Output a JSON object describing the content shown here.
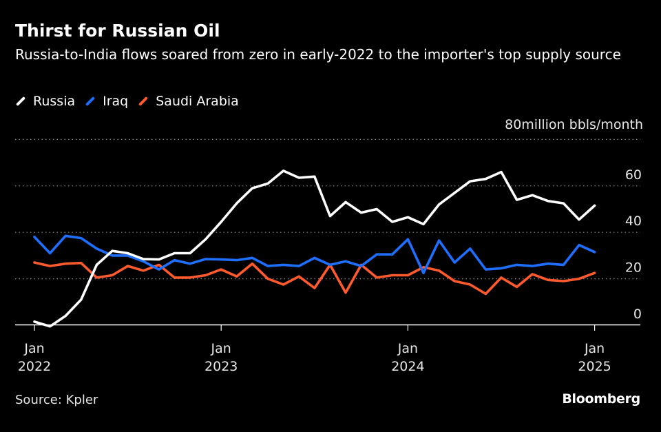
{
  "header": {
    "title": "Thirst for Russian Oil",
    "subtitle": "Russia-to-India flows soared from zero in early-2022 to the importer's top supply source"
  },
  "footer": {
    "source": "Source: Kpler",
    "brand": "Bloomberg"
  },
  "chart_data": {
    "type": "line",
    "title": "Thirst for Russian Oil",
    "subtitle": "Russia-to-India flows soared from zero in early-2022 to the importer's top supply source",
    "unit_label": "80million bbls/month",
    "ylim": [
      0,
      80
    ],
    "yticks": [
      0,
      20,
      40,
      60
    ],
    "grid": true,
    "legend_position": "top-left",
    "x_start": "2022-01",
    "xtick_labels": [
      {
        "month_index": 0,
        "line1": "Jan",
        "line2": "2022"
      },
      {
        "month_index": 12,
        "line1": "Jan",
        "line2": "2023"
      },
      {
        "month_index": 24,
        "line1": "Jan",
        "line2": "2024"
      },
      {
        "month_index": 36,
        "line1": "Jan",
        "line2": "2025"
      }
    ],
    "series": [
      {
        "name": "Russia",
        "color": "#ffffff",
        "values": [
          1.5,
          -0.5,
          4,
          11,
          26,
          32,
          31,
          28.5,
          28.3,
          31,
          31,
          37,
          44.5,
          52.5,
          59,
          61,
          66.5,
          63.5,
          64,
          47,
          53,
          48.5,
          50,
          44.5,
          46.5,
          43.5,
          52,
          57,
          62,
          63,
          66,
          54,
          56,
          53.5,
          52.5,
          45.5,
          51.5
        ]
      },
      {
        "name": "Iraq",
        "color": "#1f6fff",
        "values": [
          38,
          31,
          38.5,
          37.5,
          33,
          30,
          30,
          27.5,
          24,
          28,
          26.5,
          28.5,
          28.3,
          28,
          29,
          25.5,
          26,
          25.5,
          29,
          26,
          27.5,
          25.5,
          30.5,
          30.5,
          37,
          22.5,
          36.5,
          27,
          33,
          24,
          24.5,
          26,
          25.5,
          26.5,
          26,
          34.5,
          31.5
        ]
      },
      {
        "name": "Saudi Arabia",
        "color": "#ff5a2e",
        "values": [
          27,
          25.5,
          26.5,
          26.8,
          20.5,
          21.5,
          25.5,
          23.5,
          26,
          20.5,
          20.5,
          21.5,
          24,
          21,
          26.5,
          20,
          17.5,
          21,
          16,
          26,
          14,
          26,
          20.5,
          21.5,
          21.5,
          25,
          23.5,
          19,
          17.5,
          13.5,
          20.5,
          16.5,
          22,
          19.5,
          19,
          20,
          22.5
        ]
      }
    ]
  }
}
